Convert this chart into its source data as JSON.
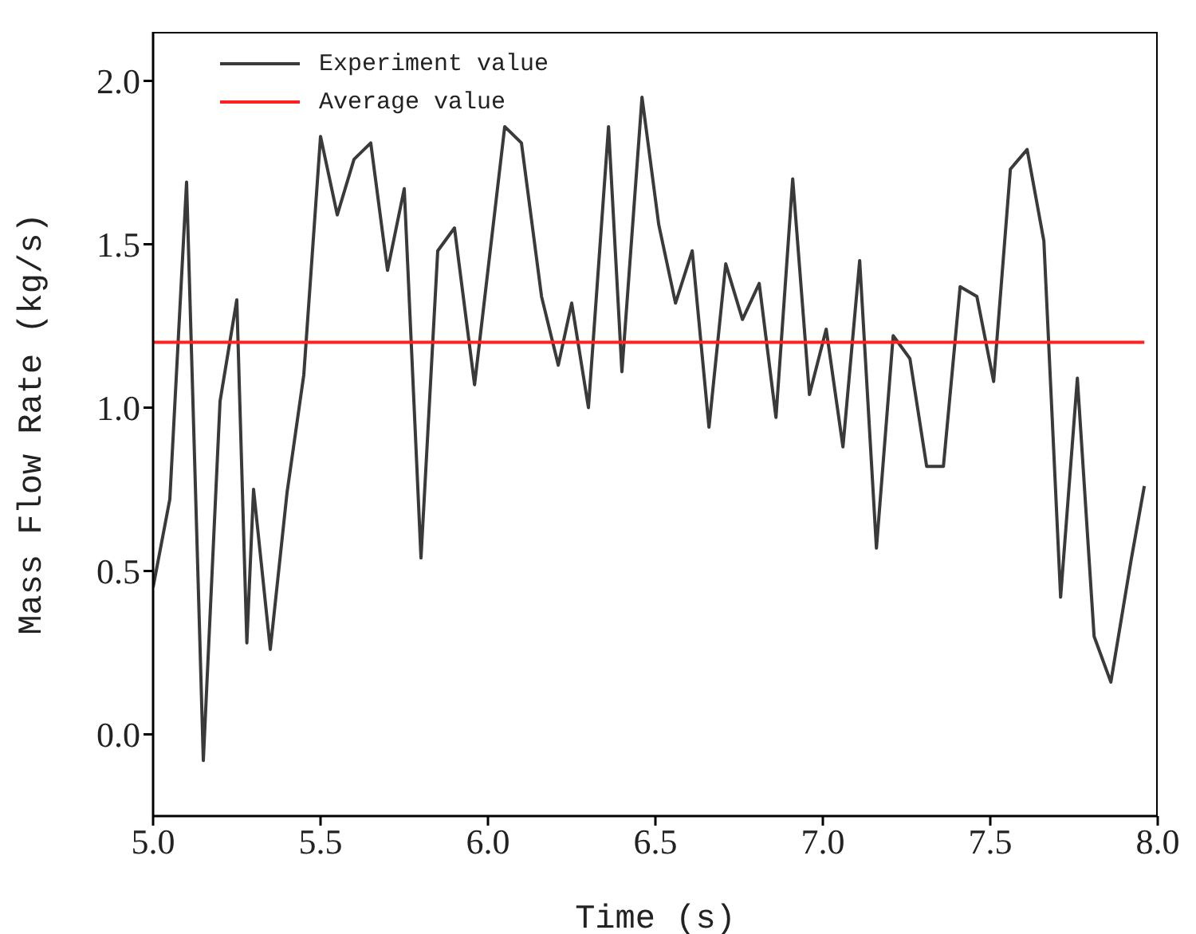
{
  "chart_data": {
    "type": "line",
    "xlabel": "Time (s)",
    "ylabel": "Mass Flow Rate (kg/s)",
    "xlim": [
      5.0,
      8.0
    ],
    "xticks": [
      {
        "value": 5,
        "label": "5.0"
      },
      {
        "value": 5.5,
        "label": "5.5"
      },
      {
        "value": 6,
        "label": "6.0"
      },
      {
        "value": 6.5,
        "label": "6.5"
      },
      {
        "value": 7,
        "label": "7.0"
      },
      {
        "value": 7.5,
        "label": "7.5"
      },
      {
        "value": 8,
        "label": "8.0"
      }
    ],
    "ylim": [
      -0.25,
      2.15
    ],
    "yticks": [
      {
        "value": 0,
        "label": "0.0"
      },
      {
        "value": 0.5,
        "label": "0.5"
      },
      {
        "value": 1,
        "label": "1.0"
      },
      {
        "value": 1.5,
        "label": "1.5"
      },
      {
        "value": 2,
        "label": "2.0"
      }
    ],
    "grid": false,
    "legend": "top left",
    "marker": "none",
    "line_style": "solid",
    "series": [
      {
        "name": "Experiment value",
        "color": "#3a3a3a",
        "x": [
          5.0,
          5.05,
          5.1,
          5.15,
          5.2,
          5.25,
          5.28,
          5.3,
          5.35,
          5.4,
          5.45,
          5.5,
          5.55,
          5.6,
          5.65,
          5.7,
          5.75,
          5.8,
          5.85,
          5.9,
          5.96,
          6.05,
          6.1,
          6.16,
          6.21,
          6.25,
          6.3,
          6.36,
          6.4,
          6.46,
          6.51,
          6.56,
          6.61,
          6.66,
          6.71,
          6.76,
          6.81,
          6.86,
          6.91,
          6.96,
          7.01,
          7.06,
          7.11,
          7.16,
          7.21,
          7.26,
          7.31,
          7.36,
          7.41,
          7.46,
          7.51,
          7.56,
          7.61,
          7.66,
          7.71,
          7.76,
          7.81,
          7.86,
          7.92,
          7.96
        ],
        "values": [
          0.45,
          0.72,
          1.69,
          -0.08,
          1.02,
          1.33,
          0.28,
          0.75,
          0.26,
          0.74,
          1.1,
          1.83,
          1.59,
          1.76,
          1.81,
          1.42,
          1.67,
          0.54,
          1.48,
          1.55,
          1.07,
          1.86,
          1.81,
          1.34,
          1.13,
          1.32,
          1.0,
          1.86,
          1.11,
          1.95,
          1.56,
          1.32,
          1.48,
          0.94,
          1.44,
          1.27,
          1.38,
          0.97,
          1.7,
          1.04,
          1.24,
          0.88,
          1.45,
          0.57,
          1.22,
          1.15,
          0.82,
          0.82,
          1.37,
          1.34,
          1.08,
          1.73,
          1.79,
          1.51,
          0.42,
          1.09,
          0.3,
          0.16,
          0.53,
          0.76
        ]
      },
      {
        "name": "Average value",
        "color": "#ff2020",
        "x": [
          5.0,
          7.96
        ],
        "values": [
          1.2,
          1.2
        ]
      }
    ]
  }
}
